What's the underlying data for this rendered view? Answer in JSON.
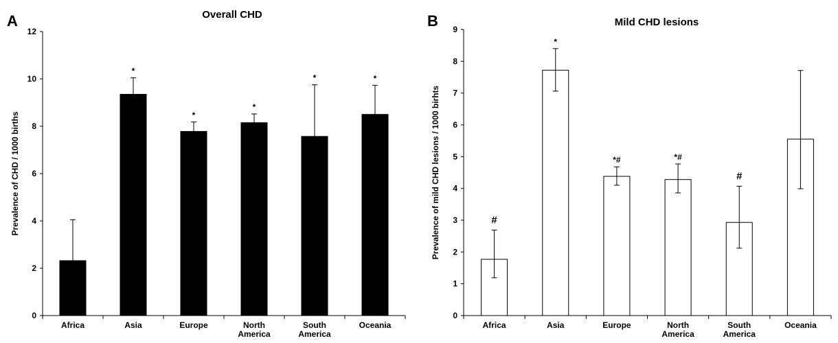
{
  "chart_data": [
    {
      "type": "bar",
      "panel_label": "A",
      "title": "Overall CHD",
      "xlabel": "",
      "ylabel": "Prevalence of CHD / 1000 births",
      "ylim": [
        0,
        12
      ],
      "yticks": [
        0,
        2,
        4,
        6,
        8,
        10,
        12
      ],
      "categories": [
        [
          "Africa"
        ],
        [
          "Asia"
        ],
        [
          "Europe"
        ],
        [
          "North",
          "America"
        ],
        [
          "South",
          "America"
        ],
        [
          "Oceania"
        ]
      ],
      "values": [
        2.32,
        9.35,
        7.78,
        8.15,
        7.57,
        8.5
      ],
      "error_upper": [
        4.05,
        10.05,
        8.18,
        8.52,
        9.75,
        9.73
      ],
      "annotations": [
        "",
        "*",
        "*",
        "*",
        "*",
        "*"
      ],
      "bar_color": "#000000",
      "grid": false,
      "legend": "none"
    },
    {
      "type": "bar",
      "panel_label": "B",
      "title": "Mild CHD lesions",
      "xlabel": "",
      "ylabel": "Prevalence of mild CHD lesions / 1000 birhts",
      "ylim": [
        0,
        9
      ],
      "yticks": [
        0,
        1,
        2,
        3,
        4,
        5,
        6,
        7,
        8,
        9
      ],
      "categories": [
        [
          "Africa"
        ],
        [
          "Asia"
        ],
        [
          "Europe"
        ],
        [
          "North",
          "America"
        ],
        [
          "South",
          "America"
        ],
        [
          "Oceania"
        ]
      ],
      "values": [
        1.77,
        7.72,
        4.38,
        4.28,
        2.93,
        5.55
      ],
      "error_lower": [
        1.19,
        7.06,
        4.1,
        3.86,
        2.12,
        3.99
      ],
      "error_upper": [
        2.69,
        8.4,
        4.68,
        4.77,
        4.07,
        7.71
      ],
      "annotations": [
        "#",
        "*",
        "*#",
        "*#",
        "#",
        ""
      ],
      "bar_color": "#ffffff",
      "grid": false,
      "legend": "none"
    }
  ]
}
